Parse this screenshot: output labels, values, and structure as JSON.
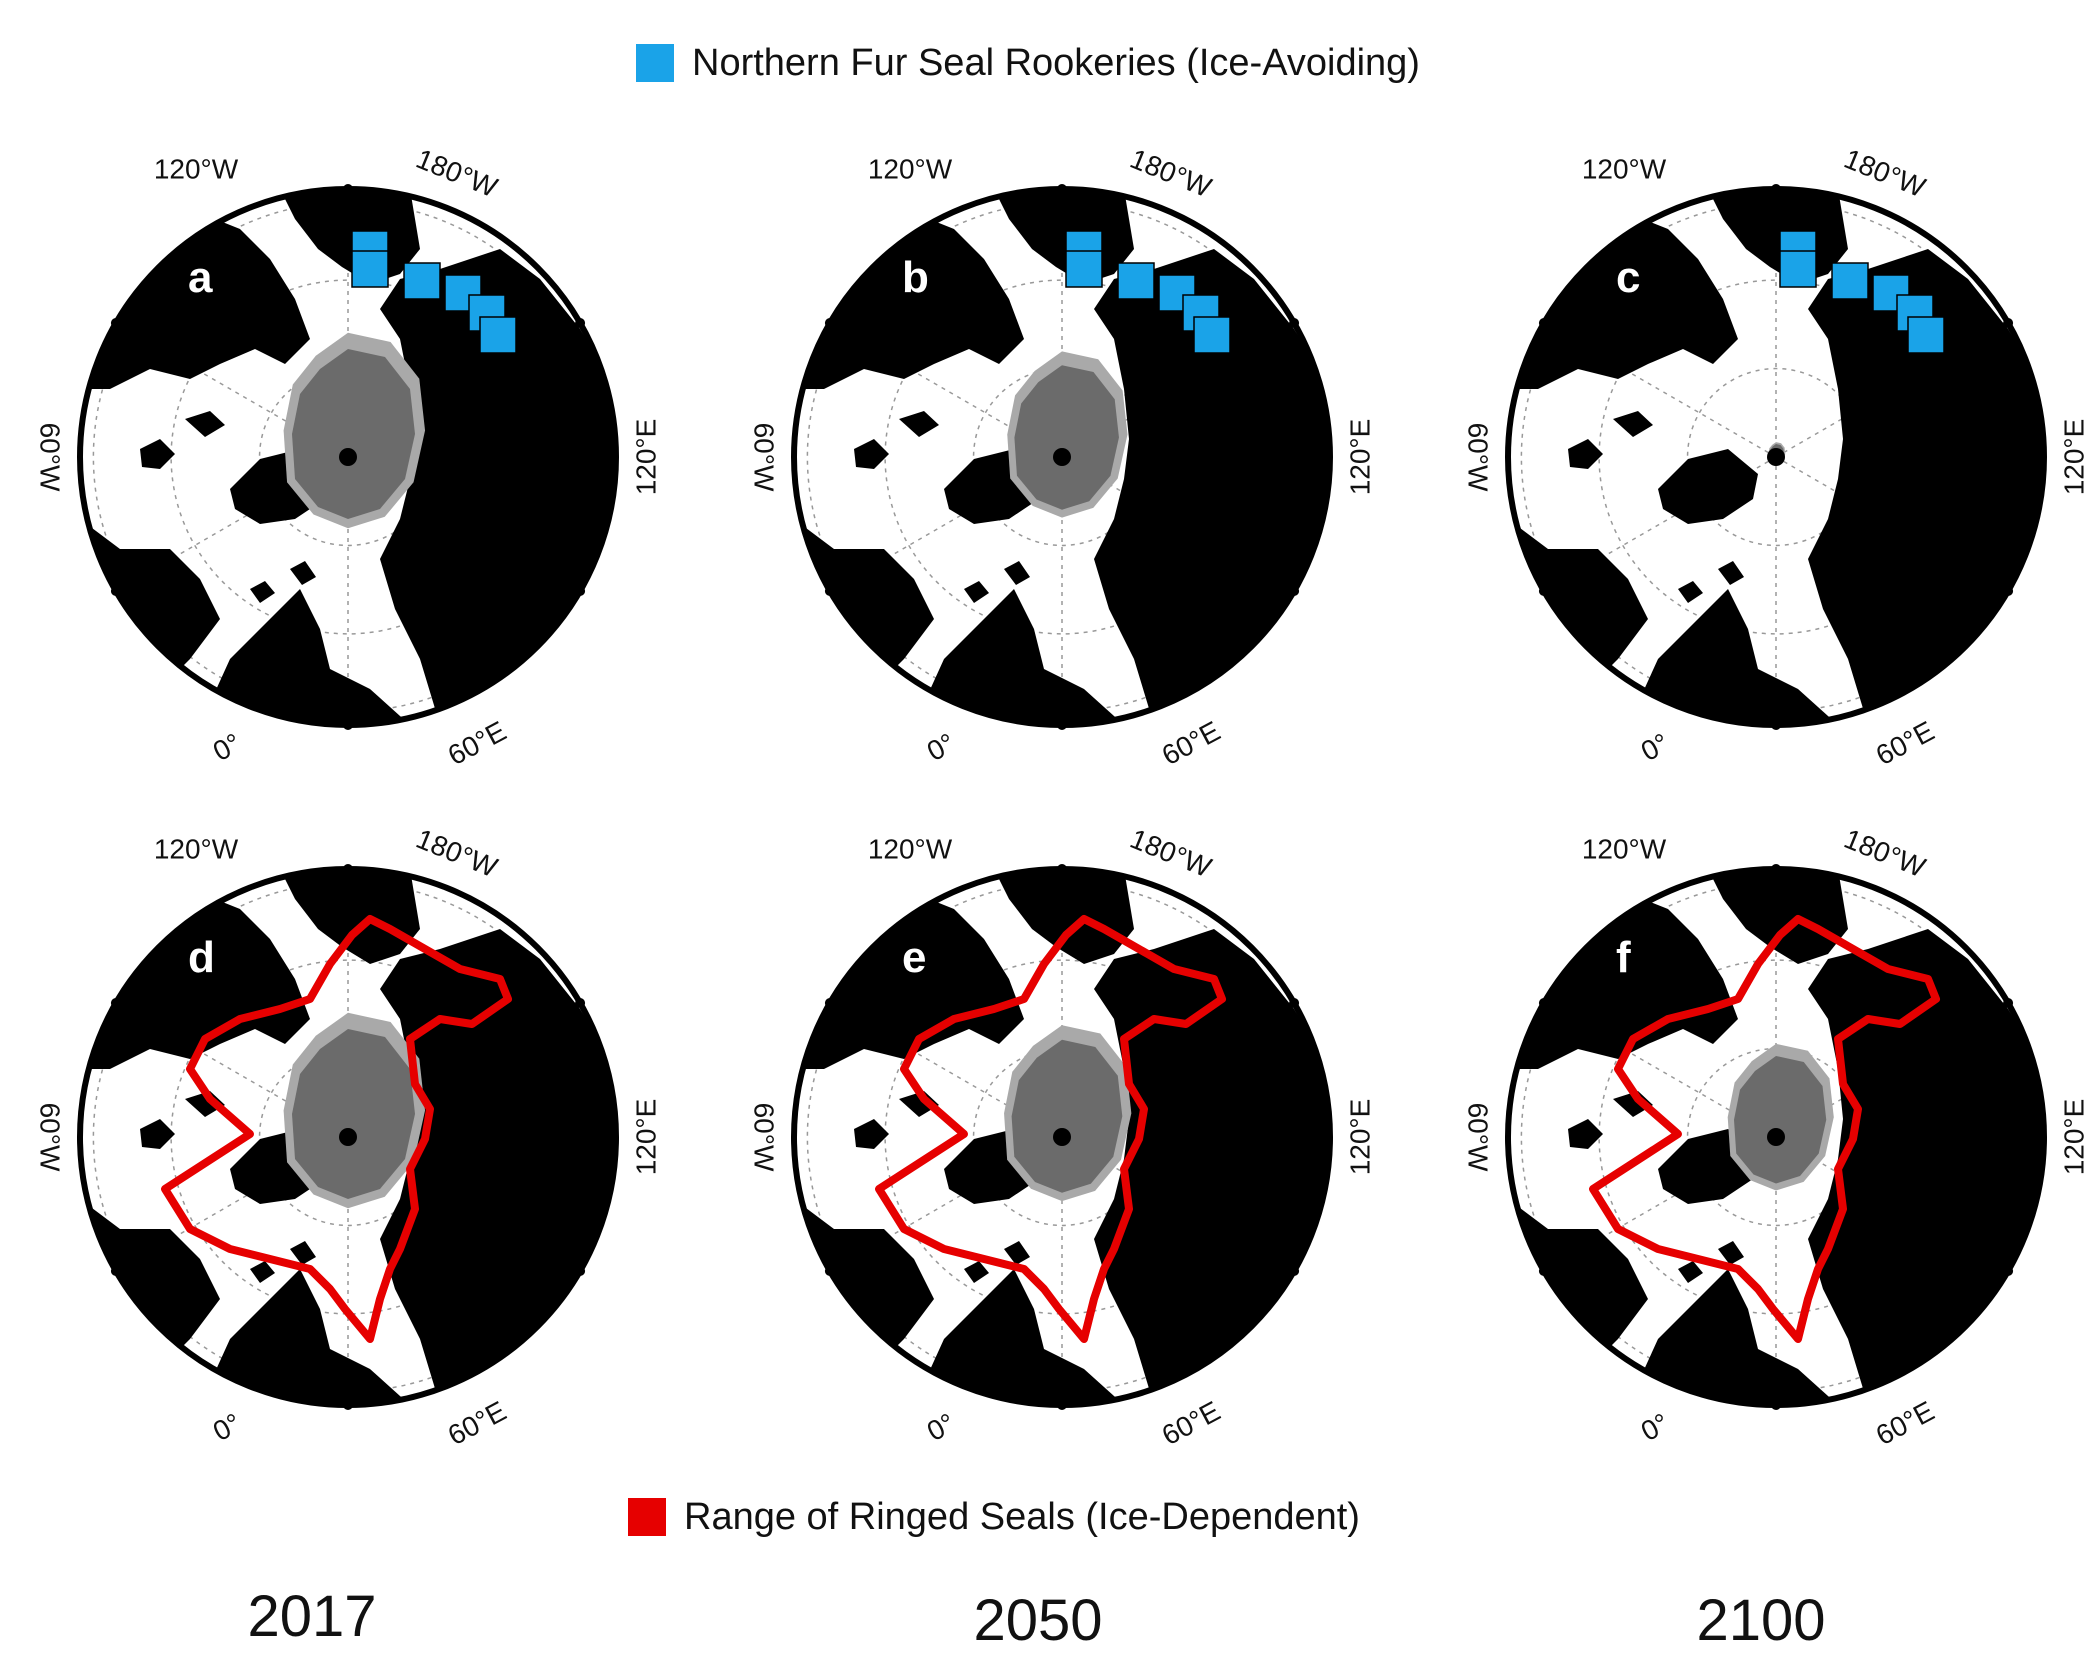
{
  "legend": {
    "fur_seal": {
      "label": "Northern Fur Seal Rookeries (Ice-Avoiding)",
      "color": "#1aa3e8",
      "icon": "blue-square-icon"
    },
    "ringed_seal": {
      "label": "Range of Ringed Seals (Ice-Dependent)",
      "color": "#e60000",
      "icon": "red-square-icon"
    }
  },
  "colors": {
    "land": "#000000",
    "ocean": "#ffffff",
    "ice_core": "#6b6b6b",
    "ice_edge": "#a9a9a9",
    "grid": "#999999",
    "border": "#000000"
  },
  "axis_labels": {
    "w120": "120°W",
    "w180": "180°W",
    "w60": "60°W",
    "e120": "120°E",
    "zero": "0°",
    "e60": "60°E"
  },
  "years": [
    "2017",
    "2050",
    "2100"
  ],
  "panels": [
    {
      "letter": "a",
      "year": "2017",
      "row": "top",
      "layer": "fur_seal_rookeries",
      "ice_level": 1.0
    },
    {
      "letter": "b",
      "year": "2050",
      "row": "top",
      "layer": "fur_seal_rookeries",
      "ice_level": 0.85
    },
    {
      "letter": "c",
      "year": "2100",
      "row": "top",
      "layer": "fur_seal_rookeries",
      "ice_level": 0.12
    },
    {
      "letter": "d",
      "year": "2017",
      "row": "bottom",
      "layer": "ringed_seal_range",
      "ice_level": 1.0
    },
    {
      "letter": "e",
      "year": "2050",
      "row": "bottom",
      "layer": "ringed_seal_range",
      "ice_level": 0.9
    },
    {
      "letter": "f",
      "year": "2100",
      "row": "bottom",
      "layer": "ringed_seal_range",
      "ice_level": 0.75
    }
  ]
}
